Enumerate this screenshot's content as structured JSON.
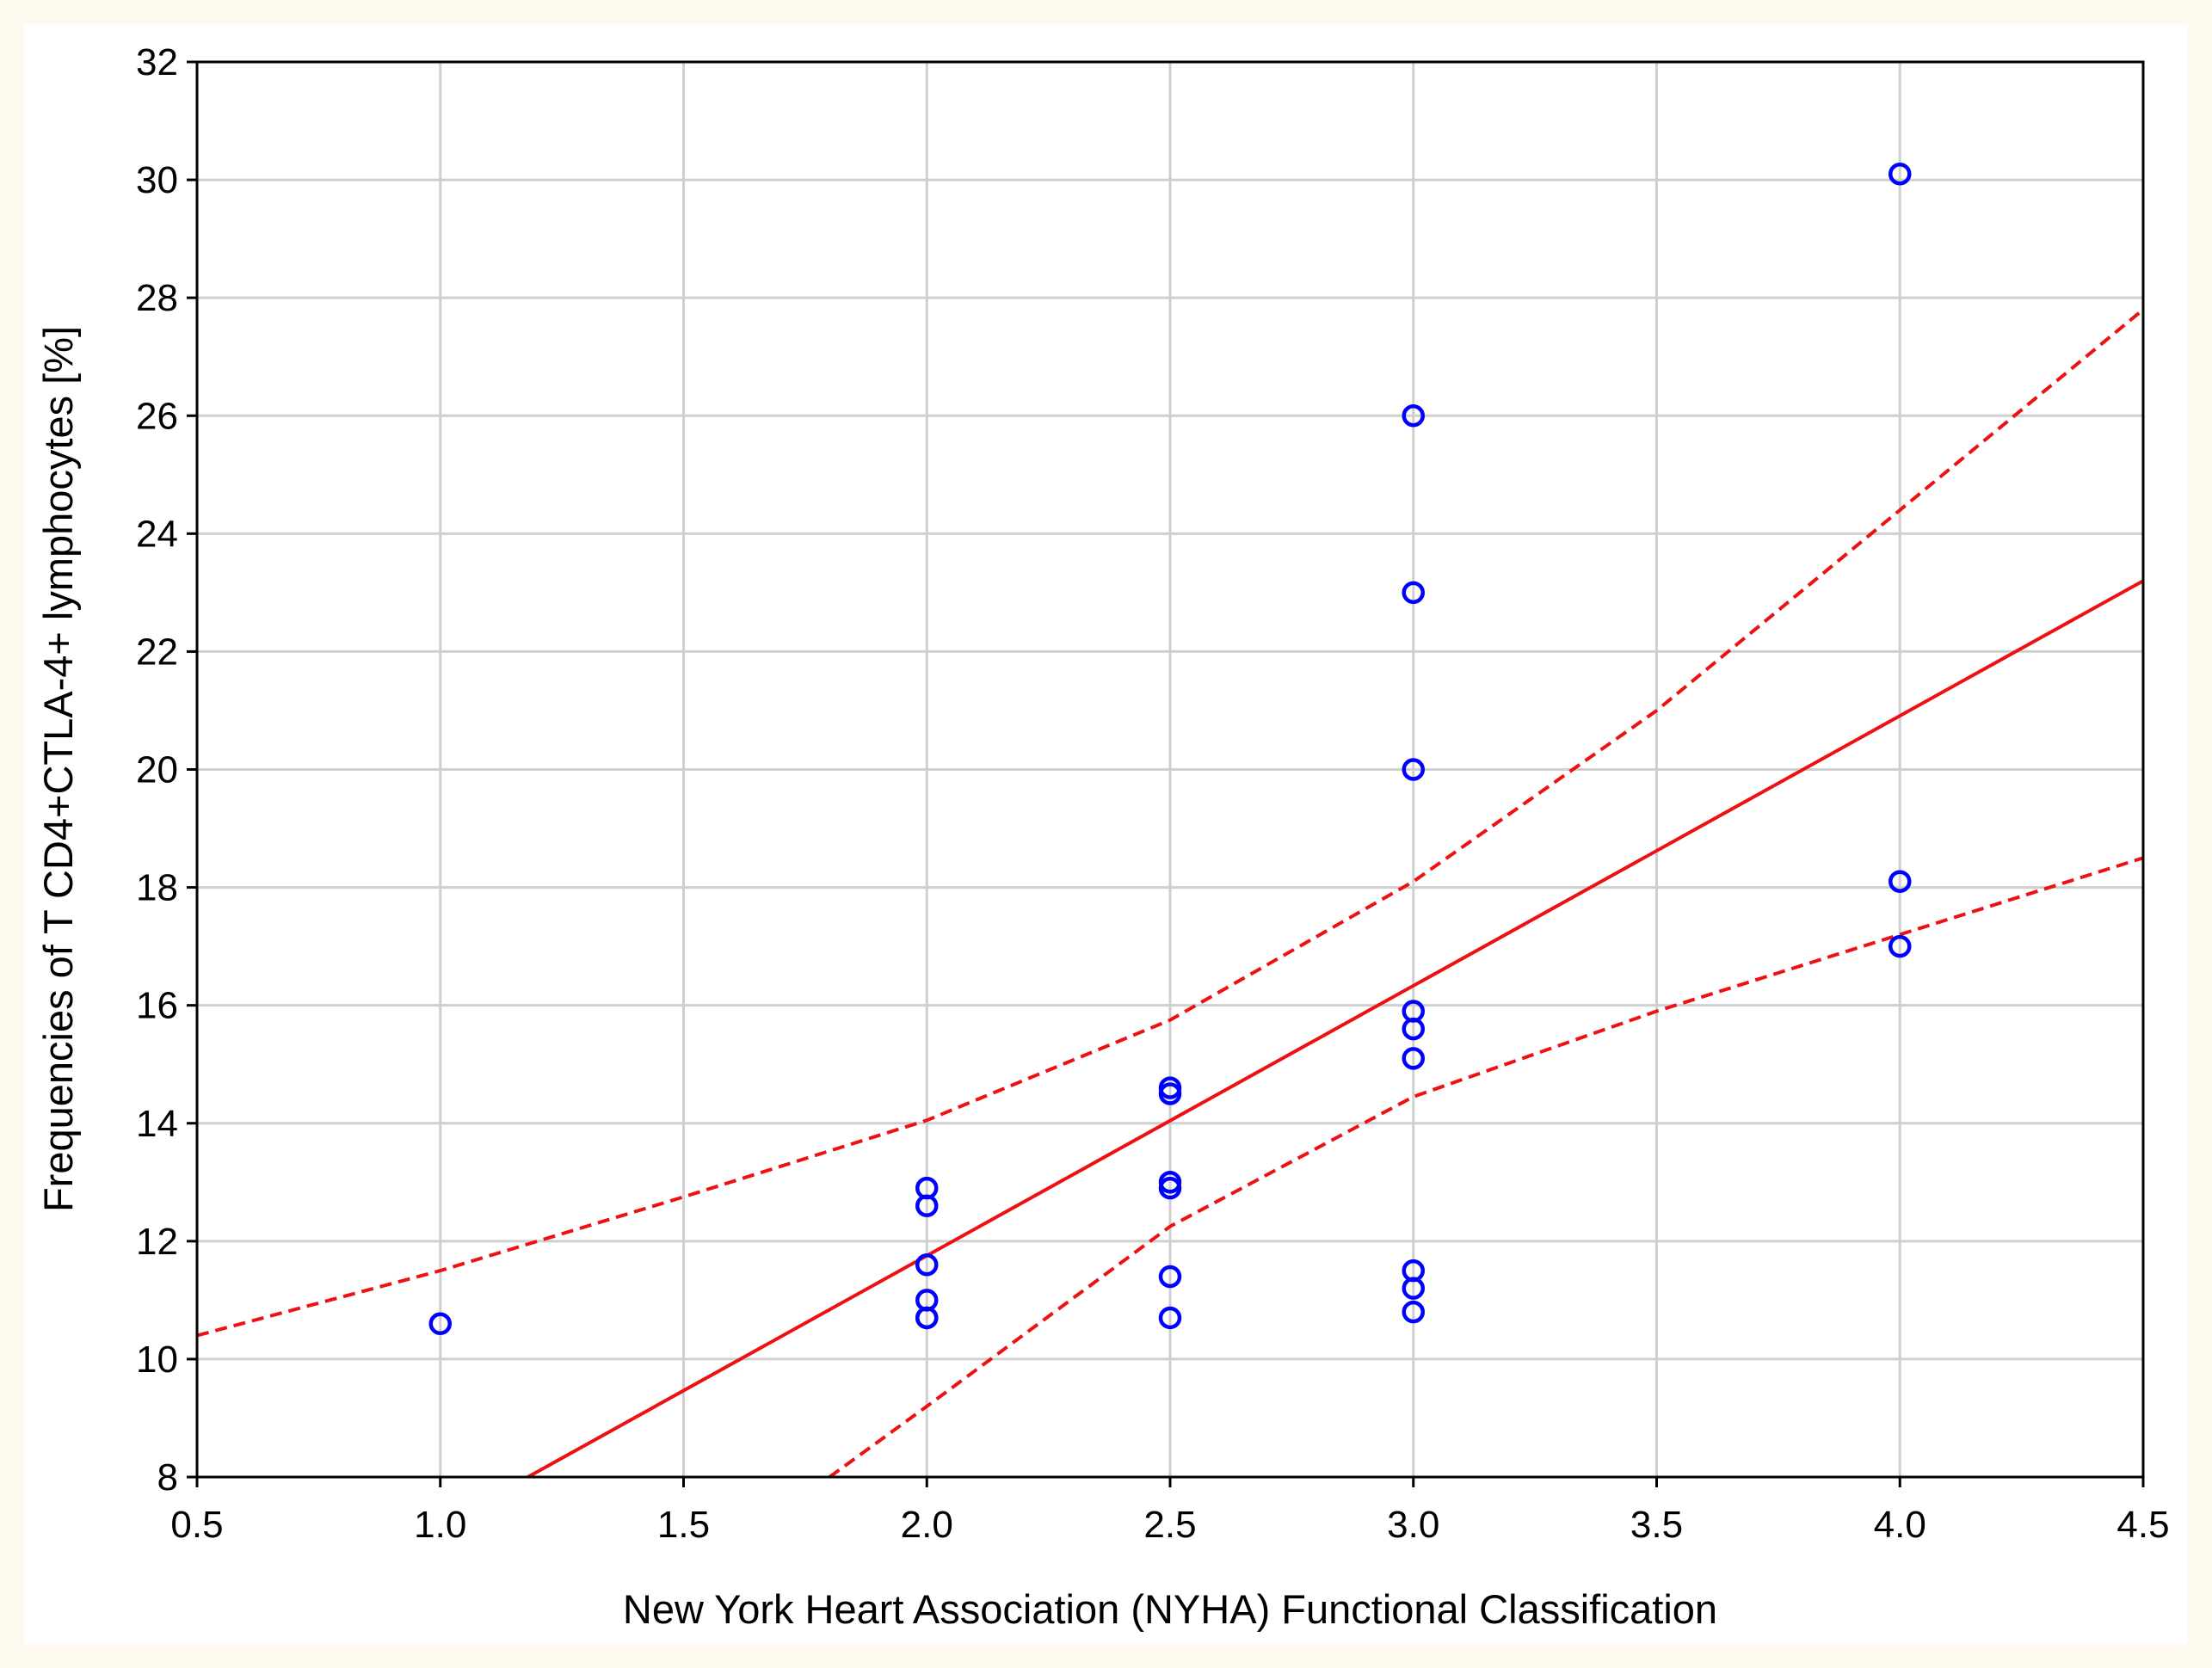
{
  "chart_data": {
    "type": "scatter",
    "title": "",
    "xlabel": "New York Heart Association (NYHA) Functional Classification",
    "ylabel": "Frequencies of T CD4+CTLA-4+ lymphocytes [%]",
    "xlim": [
      0.5,
      4.5
    ],
    "ylim": [
      8,
      32
    ],
    "x_ticks": [
      "0.5",
      "1.0",
      "1.5",
      "2.0",
      "2.5",
      "3.0",
      "3.5",
      "4.0",
      "4.5"
    ],
    "y_ticks": [
      "8",
      "10",
      "12",
      "14",
      "16",
      "18",
      "20",
      "22",
      "24",
      "26",
      "28",
      "30",
      "32"
    ],
    "grid": true,
    "series": [
      {
        "kind": "scatter",
        "marker": "open-circle",
        "color": "#0000ff",
        "points": [
          [
            1.0,
            10.6
          ],
          [
            2.0,
            12.9
          ],
          [
            2.0,
            12.6
          ],
          [
            2.0,
            11.6
          ],
          [
            2.0,
            11.0
          ],
          [
            2.0,
            10.7
          ],
          [
            2.0,
            10.7
          ],
          [
            2.5,
            14.6
          ],
          [
            2.5,
            14.5
          ],
          [
            2.5,
            13.0
          ],
          [
            2.5,
            12.9
          ],
          [
            2.5,
            11.4
          ],
          [
            2.5,
            10.7
          ],
          [
            3.0,
            26.0
          ],
          [
            3.0,
            23.0
          ],
          [
            3.0,
            20.0
          ],
          [
            3.0,
            15.9
          ],
          [
            3.0,
            15.6
          ],
          [
            3.0,
            15.1
          ],
          [
            3.0,
            11.5
          ],
          [
            3.0,
            11.2
          ],
          [
            3.0,
            10.8
          ],
          [
            4.0,
            30.1
          ],
          [
            4.0,
            18.1
          ],
          [
            4.0,
            17.0
          ]
        ]
      },
      {
        "kind": "regression-line",
        "style": "solid",
        "color": "#ee1111",
        "points": [
          [
            1.18,
            8.0
          ],
          [
            4.5,
            23.2
          ]
        ]
      },
      {
        "kind": "confidence-band-upper",
        "style": "dashed",
        "color": "#ee1111",
        "points": [
          [
            0.5,
            10.4
          ],
          [
            1.0,
            11.5
          ],
          [
            1.5,
            12.75
          ],
          [
            2.0,
            14.05
          ],
          [
            2.5,
            15.75
          ],
          [
            3.0,
            18.1
          ],
          [
            3.5,
            21.0
          ],
          [
            4.0,
            24.4
          ],
          [
            4.5,
            27.8
          ]
        ]
      },
      {
        "kind": "confidence-band-lower",
        "style": "dashed",
        "color": "#ee1111",
        "points": [
          [
            1.8,
            8.0
          ],
          [
            2.0,
            9.2
          ],
          [
            2.5,
            12.25
          ],
          [
            3.0,
            14.45
          ],
          [
            3.5,
            15.9
          ],
          [
            4.0,
            17.2
          ],
          [
            4.5,
            18.5
          ]
        ]
      }
    ]
  }
}
